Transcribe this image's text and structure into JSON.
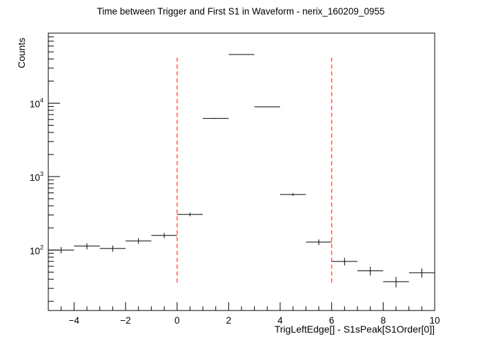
{
  "chart_data": {
    "type": "histogram",
    "title": "Time between Trigger and First S1 in Waveform - nerix_160209_0955",
    "xlabel": "TrigLeftEdge[] - S1sPeak[S1Order[0]]",
    "ylabel": "Counts",
    "xlim": [
      -5,
      10
    ],
    "ylim": [
      15,
      90000
    ],
    "y_scale": "log",
    "x_ticks": [
      "−4",
      "−2",
      "0",
      "2",
      "4",
      "6",
      "8",
      "10"
    ],
    "y_ticks": [
      {
        "base": "10",
        "exp": "2"
      },
      {
        "base": "10",
        "exp": "3"
      },
      {
        "base": "10",
        "exp": "4"
      }
    ],
    "bins": [
      {
        "x_low": -5,
        "x_high": -4,
        "value": 100
      },
      {
        "x_low": -4,
        "x_high": -3,
        "value": 113
      },
      {
        "x_low": -3,
        "x_high": -2,
        "value": 105
      },
      {
        "x_low": -2,
        "x_high": -1,
        "value": 133
      },
      {
        "x_low": -1,
        "x_high": 0,
        "value": 158
      },
      {
        "x_low": 0,
        "x_high": 1,
        "value": 305
      },
      {
        "x_low": 1,
        "x_high": 2,
        "value": 6200
      },
      {
        "x_low": 2,
        "x_high": 3,
        "value": 46000
      },
      {
        "x_low": 3,
        "x_high": 4,
        "value": 8900
      },
      {
        "x_low": 4,
        "x_high": 5,
        "value": 570
      },
      {
        "x_low": 5,
        "x_high": 6,
        "value": 128
      },
      {
        "x_low": 6,
        "x_high": 7,
        "value": 70
      },
      {
        "x_low": 7,
        "x_high": 8,
        "value": 52
      },
      {
        "x_low": 8,
        "x_high": 9,
        "value": 37
      },
      {
        "x_low": 9,
        "x_high": 10,
        "value": 49
      }
    ],
    "cut_lines": [
      {
        "x": 0,
        "y_from": 36,
        "y_to": 42000,
        "color": "#ff4040",
        "style": "dashed"
      },
      {
        "x": 6,
        "y_from": 36,
        "y_to": 42000,
        "color": "#ff4040",
        "style": "dashed"
      }
    ],
    "error_bars": "sqrt",
    "grid": false,
    "legend": "none",
    "colors": {
      "markers": "#000000",
      "frame": "#000000",
      "cuts": "#ff4040"
    }
  }
}
